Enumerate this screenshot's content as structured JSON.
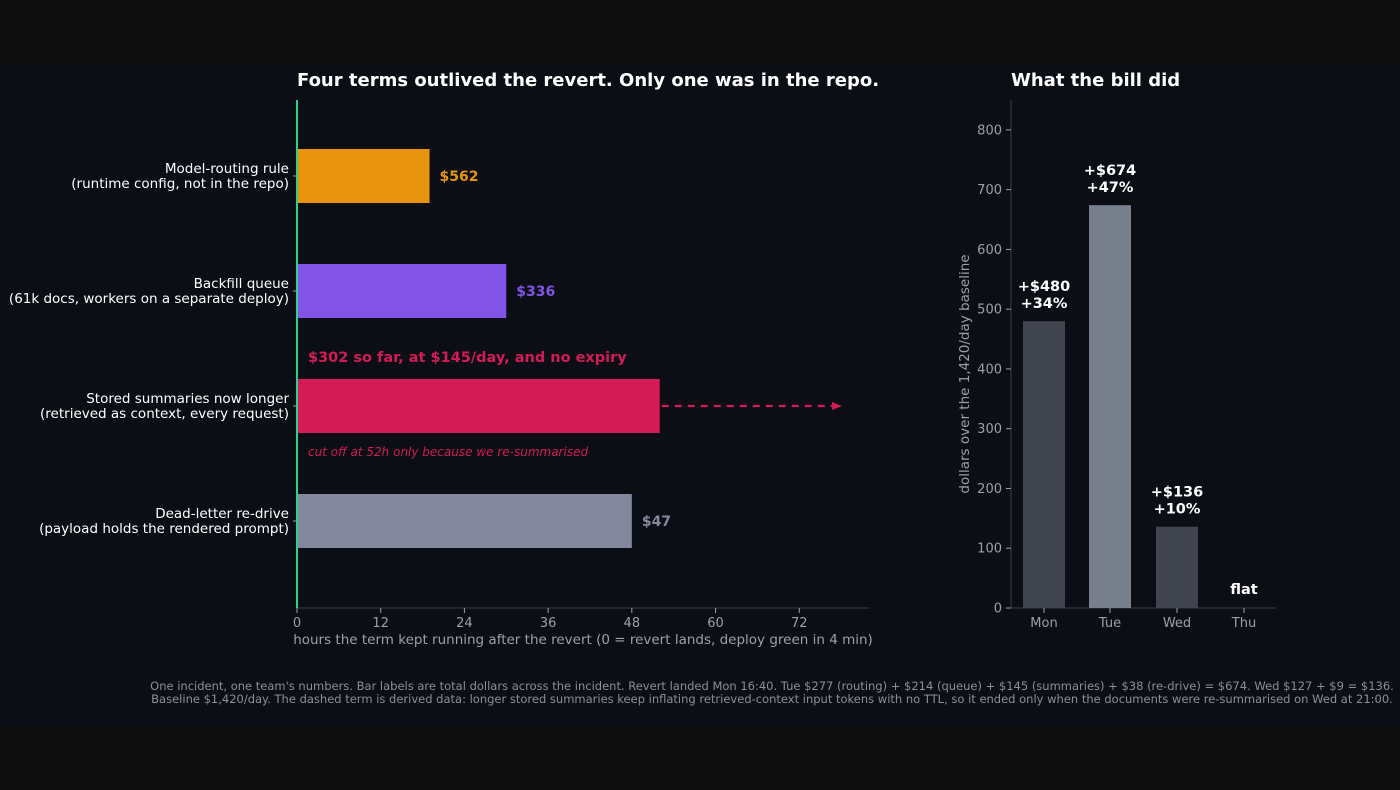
{
  "chart_data": [
    {
      "type": "bar",
      "orientation": "horizontal",
      "title": "Four terms outlived the revert. Only one was in the repo.",
      "xlabel": "hours the term kept running after the revert   (0 = revert lands, deploy green in 4 min)",
      "x_ticks": [
        0,
        12,
        24,
        36,
        48,
        60,
        72
      ],
      "xlim": [
        0,
        82
      ],
      "grid": false,
      "reference_line": {
        "x": 0,
        "color": "#2fd08f"
      },
      "bars": [
        {
          "label_line1": "Model-routing rule",
          "label_line2": "(runtime config, not in the repo)",
          "hours": 19,
          "value_label": "$562",
          "color": "#e8950d"
        },
        {
          "label_line1": "Backfill queue",
          "label_line2": "(61k docs, workers on a separate deploy)",
          "hours": 30,
          "value_label": "$336",
          "color": "#8254e6"
        },
        {
          "label_line1": "Stored summaries now longer",
          "label_line2": "(retrieved as context, every request)",
          "hours": 52,
          "value_label": "",
          "color": "#d41b55",
          "annotation_above": "$302 so far, at $145/day, and no expiry",
          "annotation_below": "cut off at 52h only because we re-summarised",
          "dashed_extension_to": 78
        },
        {
          "label_line1": "Dead-letter re-drive",
          "label_line2": "(payload holds the rendered prompt)",
          "hours": 48,
          "value_label": "$47",
          "color": "#83889c"
        }
      ]
    },
    {
      "type": "bar",
      "title": "What the bill did",
      "ylabel": "dollars over the 1,420/day baseline",
      "ylim": [
        0,
        850
      ],
      "y_ticks": [
        0,
        100,
        200,
        300,
        400,
        500,
        600,
        700,
        800
      ],
      "categories": [
        "Mon",
        "Tue",
        "Wed",
        "Thu"
      ],
      "values": [
        480,
        674,
        136,
        0
      ],
      "bar_colors": [
        "#40444f",
        "#777f8c",
        "#40444f",
        "#40444f"
      ],
      "bar_labels": [
        {
          "line1": "+$480",
          "line2": "+34%"
        },
        {
          "line1": "+$674",
          "line2": "+47%"
        },
        {
          "line1": "+$136",
          "line2": "+10%"
        },
        {
          "line1": "flat",
          "line2": ""
        }
      ]
    }
  ],
  "footnote": "One incident, one team's numbers. Bar labels are total dollars across the incident. Revert landed Mon 16:40. Tue $277 (routing) + $214 (queue) + $145 (summaries) + $38 (re-drive) = $674. Wed $127 + $9 = $136. Baseline $1,420/day. The dashed term is derived data: longer stored summaries keep inflating retrieved-context input tokens with no TTL, so it ended only when the documents were re-summarised on Wed at 21:00."
}
